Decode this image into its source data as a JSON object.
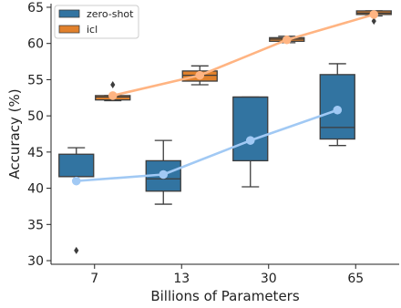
{
  "chart_data": {
    "type": "box",
    "xlabel": "Billions of Parameters",
    "ylabel": "Accuracy (%)",
    "categories": [
      "7",
      "13",
      "30",
      "65"
    ],
    "ylim": [
      29.5,
      65.5
    ],
    "yticks": [
      30,
      35,
      40,
      45,
      50,
      55,
      60,
      65
    ],
    "legend_position": "top-left",
    "series": [
      {
        "name": "zero-shot",
        "box_color": "#3274a1",
        "line_color": "#a1c9f4",
        "boxes": [
          {
            "category": "7",
            "whisker_low": 41.6,
            "q1": 41.6,
            "median": 41.6,
            "q3": 44.7,
            "whisker_high": 45.6,
            "outliers": [
              31.4
            ]
          },
          {
            "category": "13",
            "whisker_low": 37.8,
            "q1": 39.6,
            "median": 41.3,
            "q3": 43.8,
            "whisker_high": 46.6,
            "outliers": []
          },
          {
            "category": "30",
            "whisker_low": 40.2,
            "q1": 43.8,
            "median": 52.6,
            "q3": 52.6,
            "whisker_high": 52.6,
            "outliers": []
          },
          {
            "category": "65",
            "whisker_low": 45.9,
            "q1": 46.8,
            "median": 48.4,
            "q3": 55.7,
            "whisker_high": 57.2,
            "outliers": []
          }
        ],
        "means": [
          41.0,
          41.9,
          46.6,
          50.8
        ]
      },
      {
        "name": "icl",
        "box_color": "#e1812c",
        "line_color": "#ffb482",
        "boxes": [
          {
            "category": "7",
            "whisker_low": 52.1,
            "q1": 52.2,
            "median": 52.6,
            "q3": 52.8,
            "whisker_high": 52.8,
            "outliers": [
              54.3
            ]
          },
          {
            "category": "13",
            "whisker_low": 54.3,
            "q1": 54.8,
            "median": 55.6,
            "q3": 56.2,
            "whisker_high": 56.9,
            "outliers": []
          },
          {
            "category": "30",
            "whisker_low": 60.1,
            "q1": 60.3,
            "median": 60.6,
            "q3": 60.8,
            "whisker_high": 61.0,
            "outliers": []
          },
          {
            "category": "65",
            "whisker_low": 63.8,
            "q1": 64.0,
            "median": 64.2,
            "q3": 64.5,
            "whisker_high": 64.5,
            "outliers": [
              63.1
            ]
          }
        ],
        "means": [
          52.8,
          55.6,
          60.5,
          64.0
        ]
      }
    ]
  }
}
